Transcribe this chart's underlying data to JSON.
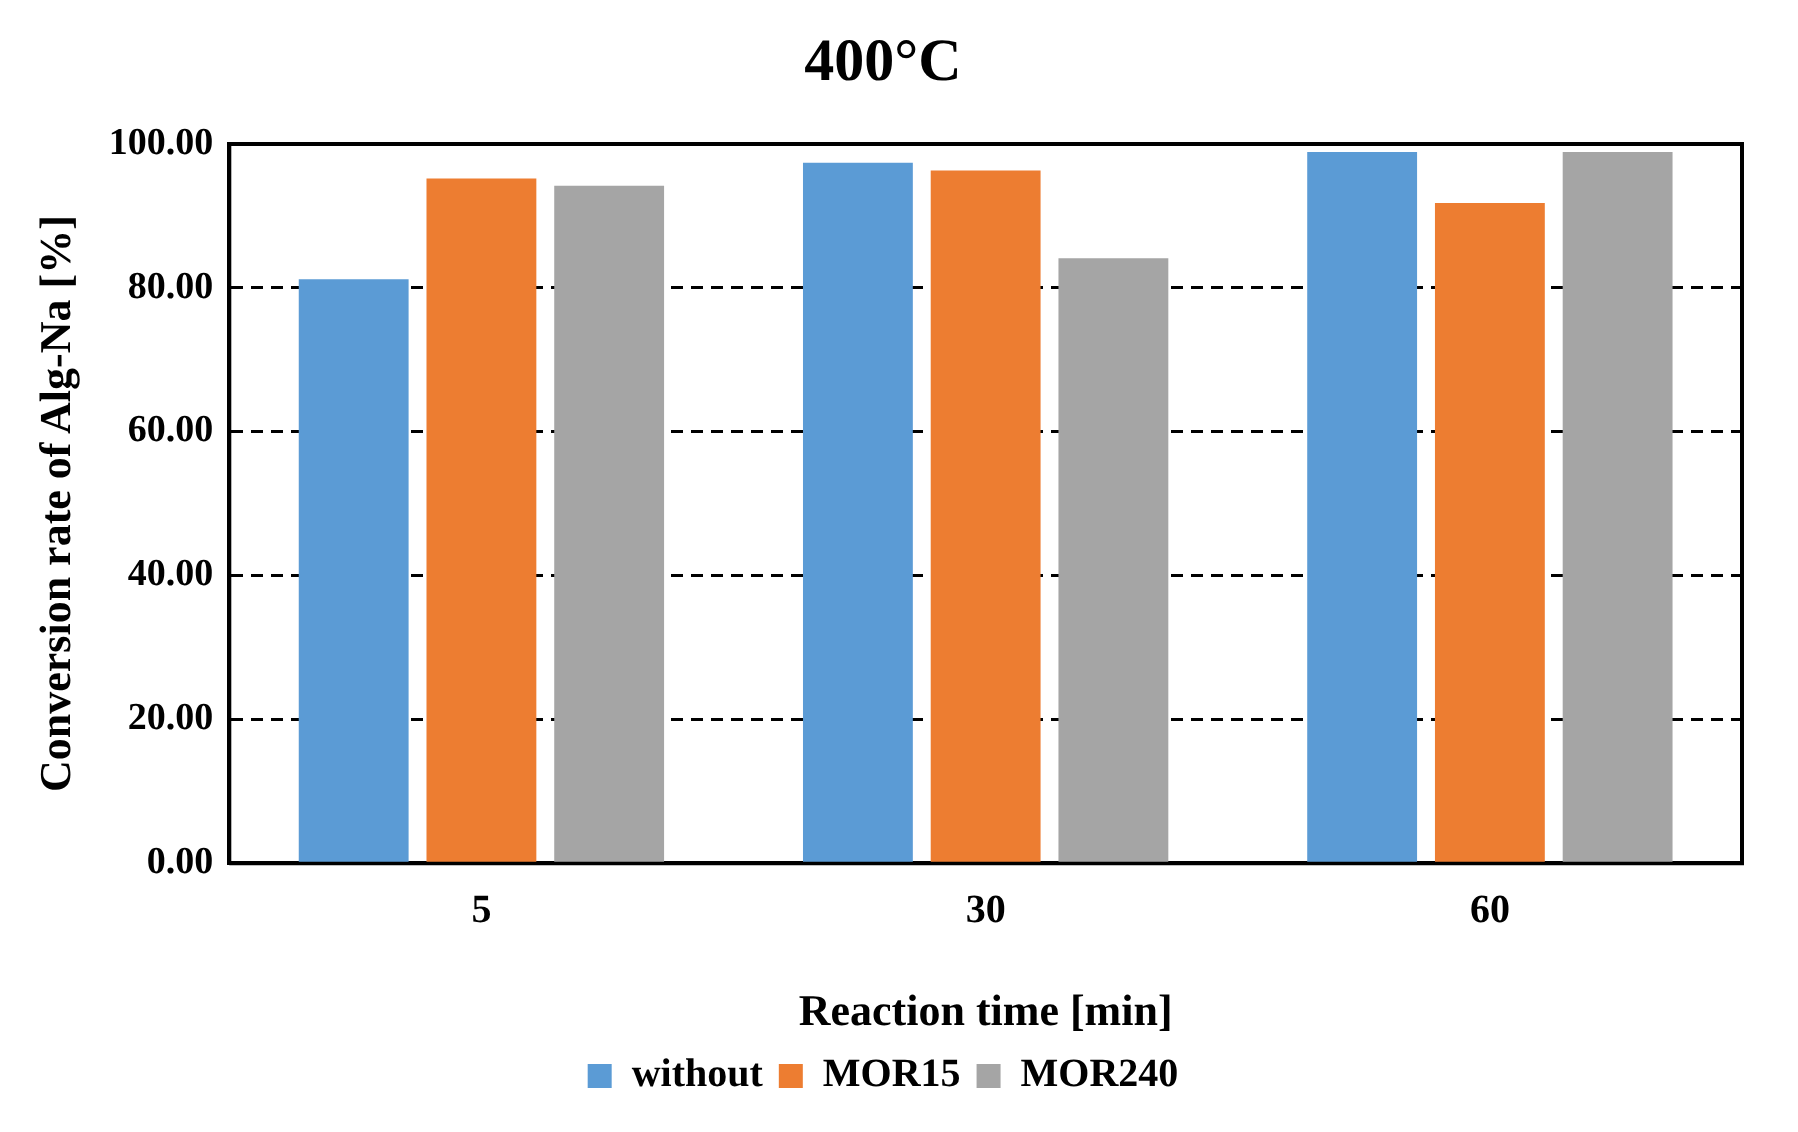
{
  "chart_data": {
    "type": "bar",
    "title": "400°C",
    "xlabel": "Reaction time [min]",
    "ylabel": "Conversion rate of Alg-Na [%]",
    "categories": [
      "5",
      "30",
      "60"
    ],
    "series": [
      {
        "name": "without",
        "color": "#5b9bd5",
        "values": [
          81.2,
          97.4,
          98.9
        ]
      },
      {
        "name": "MOR15",
        "color": "#ed7d31",
        "values": [
          95.2,
          96.3,
          91.8
        ]
      },
      {
        "name": "MOR240",
        "color": "#a5a5a5",
        "values": [
          94.2,
          84.1,
          98.9
        ]
      }
    ],
    "ylim": [
      0,
      100
    ],
    "yticks": [
      {
        "value": 0,
        "label": "0.00"
      },
      {
        "value": 20,
        "label": "20.00"
      },
      {
        "value": 40,
        "label": "40.00"
      },
      {
        "value": 60,
        "label": "60.00"
      },
      {
        "value": 80,
        "label": "80.00"
      },
      {
        "value": 100,
        "label": "100.00"
      }
    ],
    "grid": "y",
    "legend": "bottom"
  }
}
